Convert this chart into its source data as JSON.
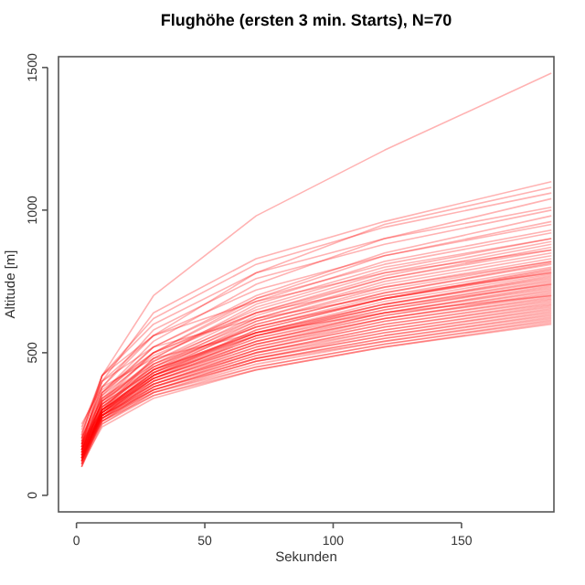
{
  "chart_data": {
    "type": "line",
    "title": "Flughöhe (ersten 3 min. Starts), N=70",
    "xlabel": "Sekunden",
    "ylabel": "Altitude [m]",
    "x": [
      2,
      10,
      30,
      70,
      120,
      185
    ],
    "xlim": [
      -7,
      186
    ],
    "ylim": [
      -58,
      1538
    ],
    "xticks": [
      0,
      50,
      100,
      150
    ],
    "yticks": [
      0,
      500,
      1000,
      1500
    ],
    "grid": false,
    "marker": "none",
    "line_style": "solid",
    "series": [
      {
        "color": "#ff0000",
        "values": [
          210,
          420,
          700,
          980,
          1210,
          1480
        ]
      },
      {
        "color": "#ff0000",
        "values": [
          180,
          400,
          640,
          830,
          960,
          1100
        ]
      },
      {
        "color": "#ff0000",
        "values": [
          200,
          380,
          560,
          780,
          950,
          1080
        ]
      },
      {
        "color": "#ff0000",
        "values": [
          170,
          420,
          620,
          810,
          940,
          1060
        ]
      },
      {
        "color": "#ff0000",
        "values": [
          150,
          360,
          540,
          740,
          900,
          1040
        ]
      },
      {
        "color": "#ff0000",
        "values": [
          190,
          380,
          580,
          760,
          880,
          1000
        ]
      },
      {
        "color": "#ff0000",
        "values": [
          160,
          350,
          520,
          700,
          850,
          980
        ]
      },
      {
        "color": "#ff0000",
        "values": [
          140,
          330,
          500,
          690,
          840,
          960
        ]
      },
      {
        "color": "#ff0000",
        "values": [
          220,
          400,
          560,
          720,
          840,
          950
        ]
      },
      {
        "color": "#ff0000",
        "values": [
          130,
          340,
          500,
          680,
          820,
          930
        ]
      },
      {
        "color": "#ff0000",
        "values": [
          180,
          360,
          520,
          690,
          810,
          920
        ]
      },
      {
        "color": "#ff0000",
        "values": [
          160,
          320,
          480,
          660,
          790,
          900
        ]
      },
      {
        "color": "#ff0000",
        "values": [
          200,
          370,
          500,
          650,
          780,
          890
        ]
      },
      {
        "color": "#ff0000",
        "values": [
          150,
          330,
          470,
          640,
          770,
          880
        ]
      },
      {
        "color": "#ff0000",
        "values": [
          120,
          300,
          460,
          630,
          760,
          870
        ]
      },
      {
        "color": "#ff0000",
        "values": [
          170,
          350,
          490,
          640,
          760,
          860
        ]
      },
      {
        "color": "#ff0000",
        "values": [
          140,
          310,
          450,
          620,
          750,
          850
        ]
      },
      {
        "color": "#ff0000",
        "values": [
          190,
          340,
          470,
          620,
          740,
          840
        ]
      },
      {
        "color": "#ff0000",
        "values": [
          110,
          290,
          440,
          610,
          730,
          830
        ]
      },
      {
        "color": "#ff0000",
        "values": [
          160,
          330,
          460,
          610,
          720,
          820
        ]
      },
      {
        "color": "#ff0000",
        "values": [
          130,
          300,
          430,
          600,
          710,
          815
        ]
      },
      {
        "color": "#ff0000",
        "values": [
          180,
          320,
          450,
          600,
          710,
          810
        ]
      },
      {
        "color": "#ff0000",
        "values": [
          150,
          310,
          440,
          590,
          700,
          800
        ]
      },
      {
        "color": "#ff0000",
        "values": [
          100,
          280,
          420,
          580,
          690,
          795
        ]
      },
      {
        "color": "#ff0000",
        "values": [
          170,
          330,
          450,
          590,
          690,
          790
        ]
      },
      {
        "color": "#ff0000",
        "values": [
          140,
          300,
          430,
          580,
          690,
          785
        ]
      },
      {
        "color": "#ff0000",
        "values": [
          200,
          340,
          460,
          590,
          690,
          780
        ]
      },
      {
        "color": "#ff0000",
        "values": [
          120,
          290,
          420,
          570,
          680,
          775
        ]
      },
      {
        "color": "#ff0000",
        "values": [
          160,
          310,
          440,
          570,
          670,
          770
        ]
      },
      {
        "color": "#ff0000",
        "values": [
          130,
          300,
          420,
          560,
          670,
          765
        ]
      },
      {
        "color": "#ff0000",
        "values": [
          180,
          320,
          440,
          570,
          670,
          760
        ]
      },
      {
        "color": "#ff0000",
        "values": [
          110,
          280,
          410,
          560,
          660,
          755
        ]
      },
      {
        "color": "#ff0000",
        "values": [
          150,
          300,
          430,
          560,
          660,
          750
        ]
      },
      {
        "color": "#ff0000",
        "values": [
          140,
          290,
          420,
          550,
          650,
          745
        ]
      },
      {
        "color": "#ff0000",
        "values": [
          190,
          320,
          440,
          560,
          650,
          740
        ]
      },
      {
        "color": "#ff0000",
        "values": [
          120,
          280,
          410,
          540,
          640,
          735
        ]
      },
      {
        "color": "#ff0000",
        "values": [
          160,
          300,
          420,
          550,
          640,
          730
        ]
      },
      {
        "color": "#ff0000",
        "values": [
          130,
          290,
          410,
          540,
          640,
          725
        ]
      },
      {
        "color": "#ff0000",
        "values": [
          170,
          310,
          420,
          540,
          630,
          720
        ]
      },
      {
        "color": "#ff0000",
        "values": [
          100,
          270,
          400,
          530,
          630,
          715
        ]
      },
      {
        "color": "#ff0000",
        "values": [
          150,
          290,
          410,
          530,
          620,
          710
        ]
      },
      {
        "color": "#ff0000",
        "values": [
          140,
          280,
          400,
          520,
          620,
          705
        ]
      },
      {
        "color": "#ff0000",
        "values": [
          180,
          300,
          410,
          530,
          620,
          700
        ]
      },
      {
        "color": "#ff0000",
        "values": [
          120,
          270,
          390,
          510,
          610,
          695
        ]
      },
      {
        "color": "#ff0000",
        "values": [
          160,
          290,
          400,
          520,
          610,
          690
        ]
      },
      {
        "color": "#ff0000",
        "values": [
          130,
          280,
          390,
          510,
          600,
          685
        ]
      },
      {
        "color": "#ff0000",
        "values": [
          170,
          300,
          400,
          510,
          600,
          680
        ]
      },
      {
        "color": "#ff0000",
        "values": [
          110,
          260,
          380,
          500,
          590,
          675
        ]
      },
      {
        "color": "#ff0000",
        "values": [
          150,
          280,
          390,
          500,
          590,
          670
        ]
      },
      {
        "color": "#ff0000",
        "values": [
          140,
          270,
          380,
          490,
          580,
          665
        ]
      },
      {
        "color": "#ff0000",
        "values": [
          190,
          290,
          390,
          500,
          580,
          660
        ]
      },
      {
        "color": "#ff0000",
        "values": [
          120,
          260,
          370,
          480,
          570,
          655
        ]
      },
      {
        "color": "#ff0000",
        "values": [
          160,
          280,
          380,
          490,
          570,
          650
        ]
      },
      {
        "color": "#ff0000",
        "values": [
          130,
          270,
          370,
          480,
          560,
          645
        ]
      },
      {
        "color": "#ff0000",
        "values": [
          170,
          280,
          380,
          480,
          560,
          640
        ]
      },
      {
        "color": "#ff0000",
        "values": [
          100,
          250,
          360,
          470,
          550,
          635
        ]
      },
      {
        "color": "#ff0000",
        "values": [
          150,
          270,
          370,
          470,
          550,
          630
        ]
      },
      {
        "color": "#ff0000",
        "values": [
          140,
          260,
          360,
          460,
          540,
          625
        ]
      },
      {
        "color": "#ff0000",
        "values": [
          180,
          280,
          370,
          470,
          540,
          620
        ]
      },
      {
        "color": "#ff0000",
        "values": [
          120,
          250,
          350,
          450,
          530,
          615
        ]
      },
      {
        "color": "#ff0000",
        "values": [
          160,
          270,
          360,
          450,
          530,
          610
        ]
      },
      {
        "color": "#ff0000",
        "values": [
          130,
          260,
          350,
          440,
          520,
          605
        ]
      },
      {
        "color": "#ff0000",
        "values": [
          110,
          240,
          340,
          440,
          520,
          600
        ]
      },
      {
        "color": "#ff0000",
        "values": [
          210,
          420,
          600,
          780,
          900,
          1010
        ]
      },
      {
        "color": "#ff0000",
        "values": [
          230,
          420,
          560,
          680,
          780,
          860
        ]
      },
      {
        "color": "#ff0000",
        "values": [
          240,
          400,
          520,
          620,
          700,
          780
        ]
      },
      {
        "color": "#ff0000",
        "values": [
          250,
          380,
          480,
          570,
          640,
          700
        ]
      },
      {
        "color": "#ff0000",
        "values": [
          120,
          300,
          480,
          670,
          800,
          900
        ]
      },
      {
        "color": "#ff0000",
        "values": [
          130,
          290,
          430,
          570,
          660,
          740
        ]
      },
      {
        "color": "#ff0000",
        "values": [
          200,
          360,
          500,
          640,
          730,
          820
        ]
      }
    ]
  }
}
